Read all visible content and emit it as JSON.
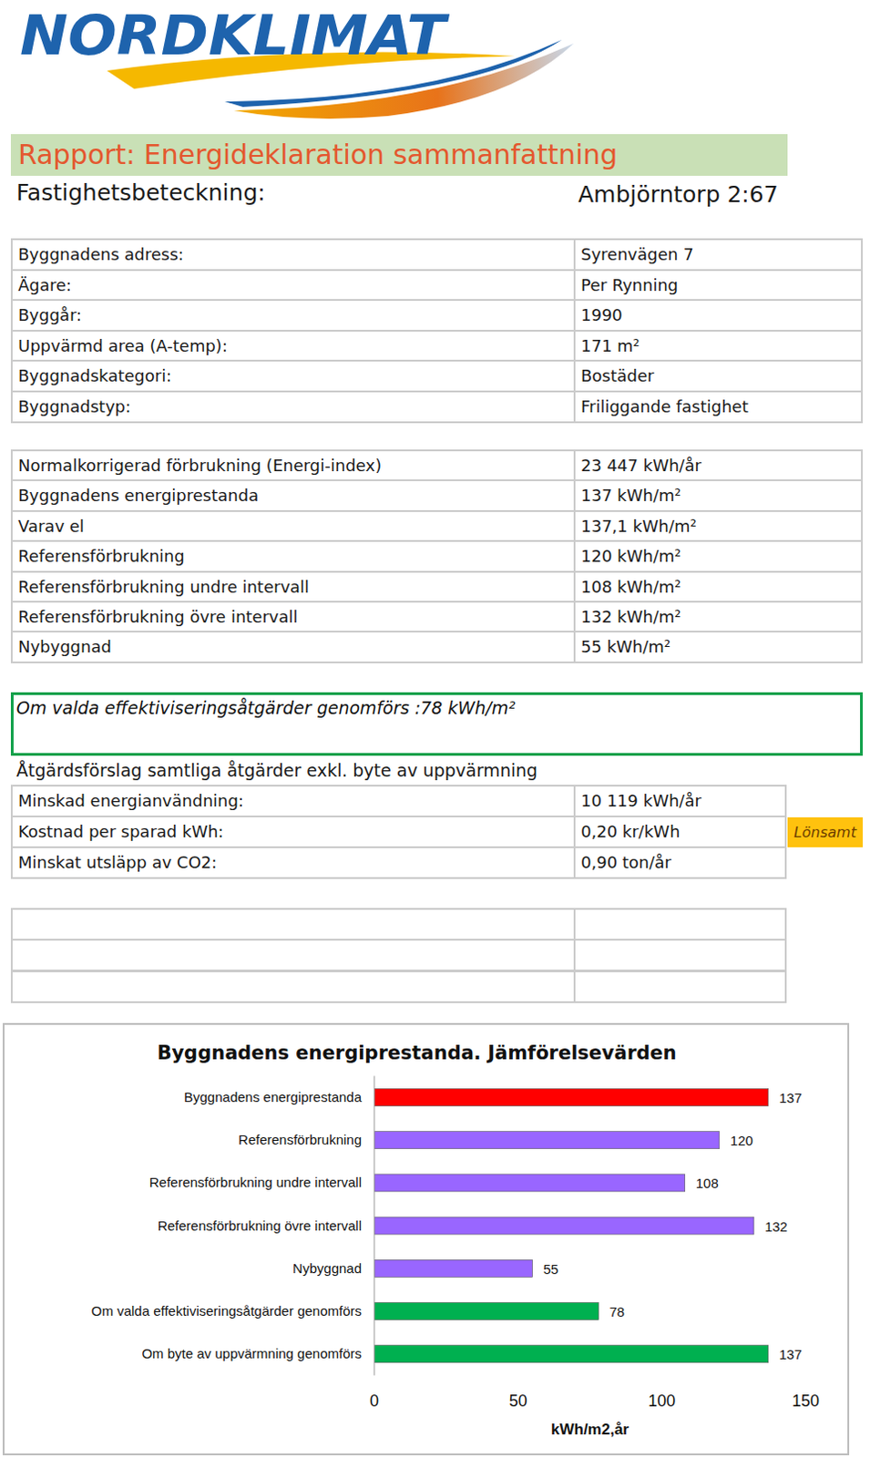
{
  "header": {
    "logo": "NORDKLIMAT",
    "title": "Rapport: Energideklaration sammanfattning",
    "property_label": "Fastighetsbeteckning:",
    "property_value": "Ambjörntorp 2:67"
  },
  "building_table": {
    "rows": [
      [
        "Byggnadens adress:",
        "Syrenvägen 7"
      ],
      [
        "Ägare:",
        "Per Rynning"
      ],
      [
        "Byggår:",
        "1990"
      ],
      [
        "Uppvärmd area (A-temp):",
        "171 m²"
      ],
      [
        "Byggnadskategori:",
        "Bostäder"
      ],
      [
        "Byggnadstyp:",
        "Friliggande fastighet"
      ]
    ]
  },
  "energy_table": {
    "rows": [
      [
        "Normalkorrigerad förbrukning (Energi-index)",
        "23 447 kWh/år"
      ],
      [
        "Byggnadens energiprestanda",
        "137 kWh/m²"
      ],
      [
        "Varav el",
        "137,1 kWh/m²"
      ],
      [
        "Referensförbrukning",
        "120 kWh/m²"
      ],
      [
        "Referensförbrukning undre intervall",
        "108 kWh/m²"
      ],
      [
        "Referensförbrukning övre intervall",
        "132 kWh/m²"
      ],
      [
        "Nybyggnad",
        "55 kWh/m²"
      ]
    ]
  },
  "measures_box": {
    "text": "Om valda effektiviseringsåtgärder genomförs :78 kWh/m²"
  },
  "measures": {
    "heading": "Åtgärdsförslag samtliga åtgärder exkl. byte av uppvärmning",
    "rows": [
      [
        "Minskad energianvändning:",
        "10 119 kWh/år"
      ],
      [
        "Kostnad per sparad kWh:",
        "0,20 kr/kWh"
      ],
      [
        "Minskat utsläpp av CO2:",
        "0,90 ton/år"
      ]
    ],
    "badge": "Lönsamt"
  },
  "chart_data": {
    "type": "bar",
    "orientation": "horizontal",
    "title": "Byggnadens energiprestanda. Jämförelsevärden",
    "categories": [
      "Byggnadens energiprestanda",
      "Referensförbrukning",
      "Referensförbrukning undre intervall",
      "Referensförbrukning övre intervall",
      "Nybyggnad",
      "Om valda effektiviseringsåtgärder genomförs",
      "Om byte av uppvärmning genomförs"
    ],
    "values": [
      137,
      120,
      108,
      132,
      55,
      78,
      137
    ],
    "colors": [
      "#ff0000",
      "#9966ff",
      "#9966ff",
      "#9966ff",
      "#9966ff",
      "#00b050",
      "#00b050"
    ],
    "xlim": [
      0,
      150
    ],
    "xticks": [
      0,
      50,
      100,
      150
    ],
    "xlabel": "kWh/m2,år",
    "data_labels": true,
    "grid": false
  }
}
